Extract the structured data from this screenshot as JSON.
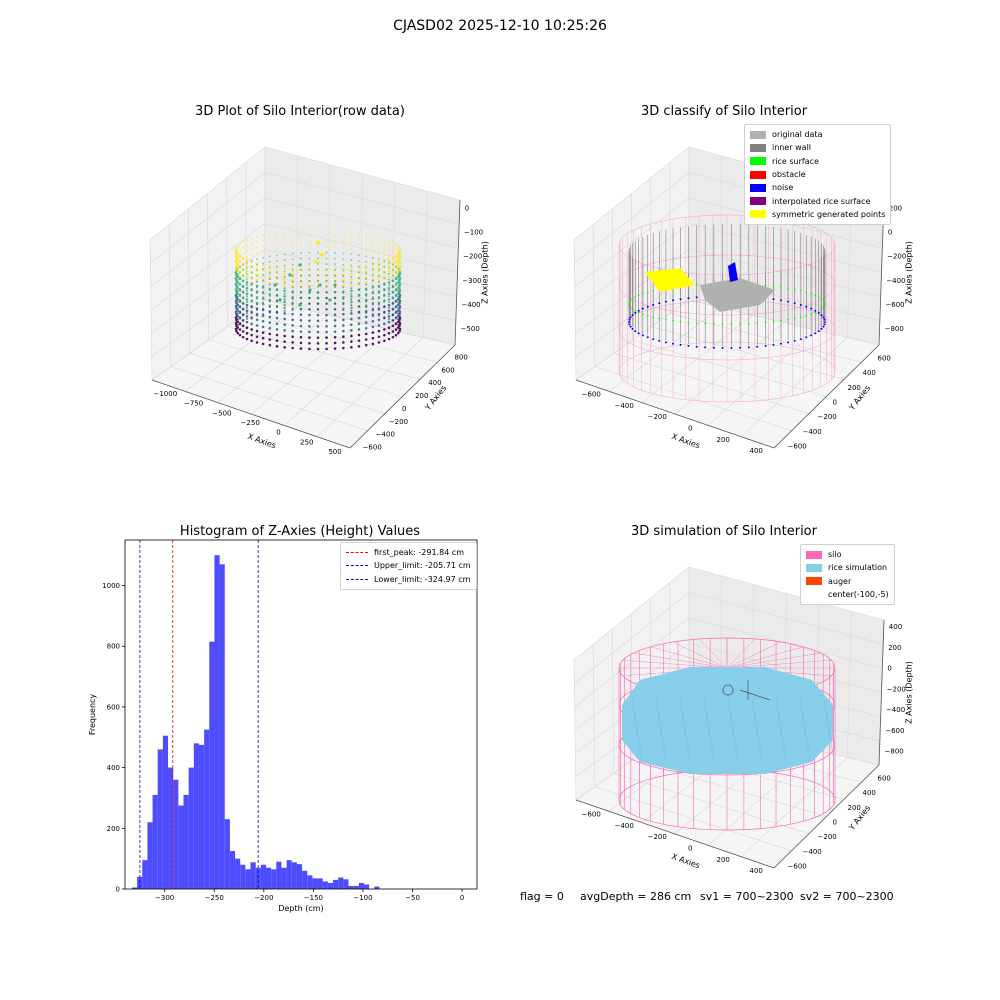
{
  "suptitle": "CJASD02 2025-12-10 10:25:26",
  "status": {
    "flag": "flag = 0",
    "avg_depth": "avgDepth = 286 cm",
    "sv1": "sv1 = 700~2300",
    "sv2": "sv2 = 700~2300"
  },
  "chart_data": [
    {
      "type": "scatter",
      "title": "3D Plot of Silo Interior(row data)",
      "xlabel": "X Axies",
      "ylabel": "Y Axies",
      "zlabel": "Z Axies (Depth)",
      "x_ticks": [
        "−1000",
        "−750",
        "−500",
        "−250",
        "0",
        "250",
        "500"
      ],
      "y_ticks": [
        "−600",
        "−400",
        "−200",
        "0",
        "200",
        "400",
        "600",
        "800"
      ],
      "z_ticks": [
        "0",
        "−100",
        "−200",
        "−300",
        "−400",
        "−500"
      ],
      "colormap": [
        "#440154",
        "#31688e",
        "#35b779",
        "#fde725"
      ],
      "grid": true
    },
    {
      "type": "scatter",
      "title": "3D classify of Silo Interior",
      "xlabel": "X Axies",
      "ylabel": "Y Axies",
      "zlabel": "Z Axies (Depth)",
      "x_ticks": [
        "−600",
        "−400",
        "−200",
        "0",
        "200",
        "400"
      ],
      "y_ticks": [
        "−600",
        "−400",
        "−200",
        "0",
        "200",
        "400",
        "600"
      ],
      "z_ticks": [
        "200",
        "0",
        "−200",
        "−400",
        "−600",
        "−800"
      ],
      "legend_position": "top-right",
      "legend": [
        {
          "label": "original data",
          "color": "#b0b0b0"
        },
        {
          "label": "inner wall",
          "color": "#808080"
        },
        {
          "label": "rice surface",
          "color": "#00ff00"
        },
        {
          "label": "obstacle",
          "color": "#ff0000"
        },
        {
          "label": "noise",
          "color": "#0000ff"
        },
        {
          "label": "interpolated rice surface",
          "color": "#800080"
        },
        {
          "label": "symmetric generated points",
          "color": "#ffff00"
        }
      ],
      "grid": true
    },
    {
      "type": "bar",
      "title": "Histogram of Z-Axies (Height) Values",
      "xlabel": "Depth (cm)",
      "ylabel": "Frequency",
      "xlim": [
        -340,
        15
      ],
      "ylim": [
        0,
        1150
      ],
      "x_ticks": [
        -300,
        -250,
        -200,
        -150,
        -100,
        -50,
        0
      ],
      "y_ticks": [
        0,
        200,
        400,
        600,
        800,
        1000
      ],
      "bin_start": -333,
      "bin_width": 5.2,
      "values": [
        5,
        40,
        95,
        220,
        310,
        460,
        505,
        400,
        360,
        275,
        310,
        400,
        480,
        475,
        525,
        815,
        1100,
        1070,
        230,
        125,
        100,
        80,
        65,
        88,
        70,
        80,
        70,
        65,
        90,
        70,
        95,
        88,
        82,
        60,
        45,
        35,
        35,
        25,
        20,
        30,
        38,
        32,
        10,
        10,
        20,
        15,
        0,
        8
      ],
      "bar_color": "#4d4dff",
      "vlines": [
        {
          "label": "first_peak: -291.84 cm",
          "value": -291.84,
          "color": "#ff0000"
        },
        {
          "label": "Upper_limit: -205.71 cm",
          "value": -205.71,
          "color": "#0000cc"
        },
        {
          "label": "Lower_limit: -324.97 cm",
          "value": -324.97,
          "color": "#0000cc"
        }
      ],
      "legend_position": "top-right"
    },
    {
      "type": "scatter",
      "title": "3D simulation of Silo Interior",
      "xlabel": "X Axies",
      "ylabel": "Y Axies",
      "zlabel": "Z Axies (Depth)",
      "x_ticks": [
        "−600",
        "−400",
        "−200",
        "0",
        "200",
        "400"
      ],
      "y_ticks": [
        "−600",
        "−400",
        "−200",
        "0",
        "200",
        "400",
        "600"
      ],
      "z_ticks": [
        "400",
        "200",
        "0",
        "−200",
        "−400",
        "−600",
        "−800"
      ],
      "legend_position": "top-right",
      "legend": [
        {
          "label": "silo",
          "color": "#ff69b4"
        },
        {
          "label": "rice simulation",
          "color": "#87ceeb"
        },
        {
          "label": "auger",
          "color": "#ff4500"
        },
        {
          "label": "center(-100,-5)",
          "color": ""
        }
      ],
      "grid": true
    }
  ]
}
